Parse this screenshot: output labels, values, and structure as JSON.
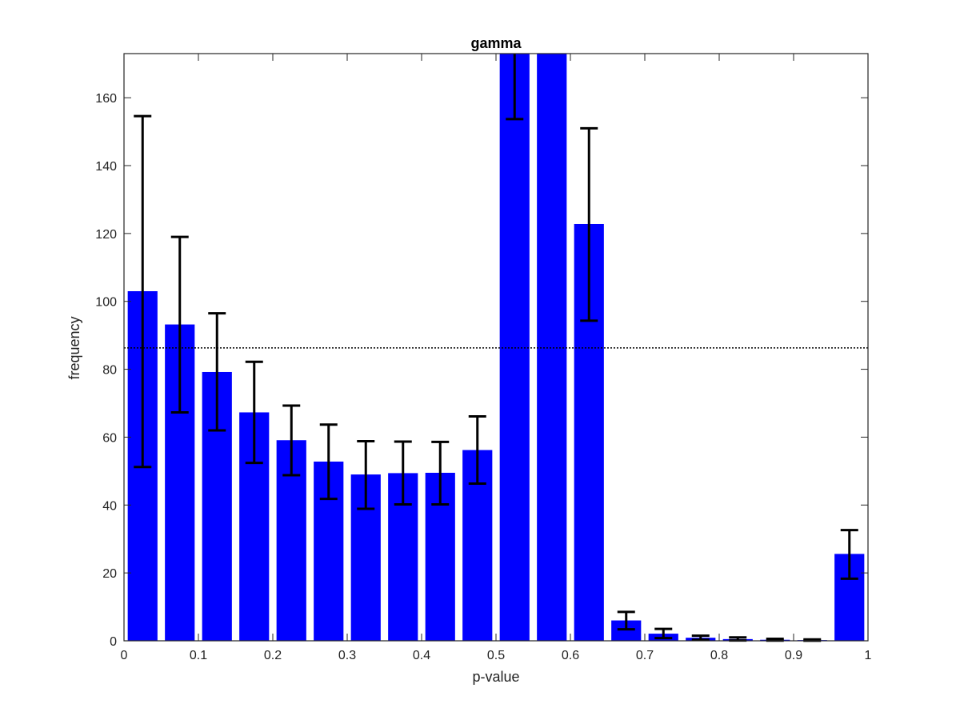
{
  "chart_data": {
    "type": "bar",
    "title": "gamma",
    "xlabel": "p-value",
    "ylabel": "frequency",
    "xlim": [
      0,
      1
    ],
    "ylim": [
      0,
      173
    ],
    "bin_width": 0.05,
    "x": [
      0.025,
      0.075,
      0.125,
      0.175,
      0.225,
      0.275,
      0.325,
      0.375,
      0.425,
      0.475,
      0.525,
      0.575,
      0.625,
      0.675,
      0.725,
      0.775,
      0.825,
      0.875,
      0.925,
      0.975
    ],
    "values": [
      103,
      93.2,
      79.2,
      67.3,
      59.1,
      52.8,
      49,
      49.4,
      49.5,
      56.2,
      173,
      173,
      122.8,
      6,
      2.1,
      0.9,
      0.5,
      0.3,
      0.2,
      25.6
    ],
    "error_lower": [
      51.2,
      67.3,
      62,
      52.4,
      48.8,
      41.8,
      38.9,
      40.2,
      40.2,
      46.3,
      153.7,
      null,
      94.3,
      3.4,
      0.8,
      0.3,
      0.1,
      0.05,
      0.02,
      18.3
    ],
    "error_upper": [
      154.6,
      119,
      96.5,
      82.2,
      69.3,
      63.7,
      58.8,
      58.7,
      58.6,
      66.1,
      173,
      null,
      151,
      8.5,
      3.5,
      1.5,
      1,
      0.6,
      0.4,
      32.6
    ],
    "reference_line": 86.3,
    "xticks": [
      "0",
      "0.1",
      "0.2",
      "0.3",
      "0.4",
      "0.5",
      "0.6",
      "0.7",
      "0.8",
      "0.9",
      "1"
    ],
    "yticks": [
      "0",
      "20",
      "40",
      "60",
      "80",
      "100",
      "120",
      "140",
      "160"
    ],
    "bar_color": "#0000ff",
    "errorbar_color": "#000000",
    "grid": false
  }
}
